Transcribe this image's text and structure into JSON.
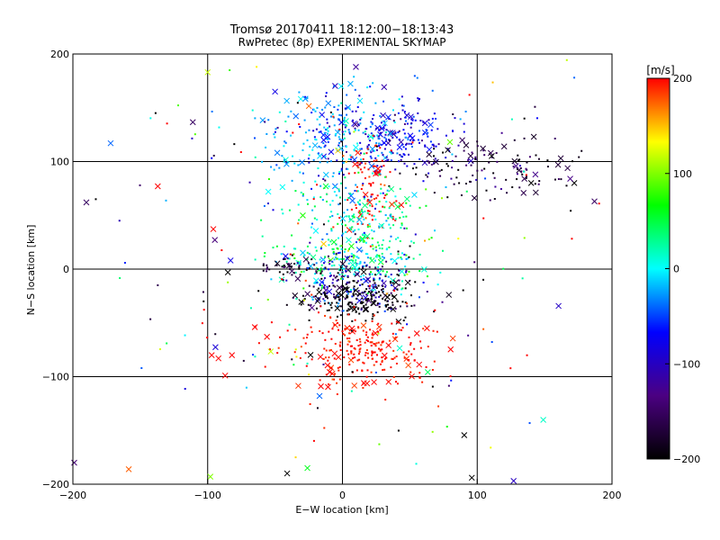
{
  "chart_data": {
    "type": "scatter",
    "title": "Tromsø 20170411 18:12:00−18:13:43",
    "subtitle": "RwPretec (8p) EXPERIMENTAL SKYMAP",
    "xlabel": "E−W location [km]",
    "ylabel": "N−S location [km]",
    "xlim": [
      -200,
      200
    ],
    "ylim": [
      -200,
      200
    ],
    "xticks": [
      -200,
      -100,
      0,
      100,
      200
    ],
    "yticks": [
      -200,
      -100,
      0,
      100,
      200
    ],
    "grid": true,
    "marker_legend": "small dots and x markers, colored by velocity",
    "colorbar": {
      "label": "[m/s]",
      "range": [
        -200,
        200
      ],
      "ticks": [
        -200,
        -100,
        0,
        100,
        200
      ],
      "colormap": [
        "#000000",
        "#4b0082",
        "#0000ff",
        "#00ffff",
        "#00ff00",
        "#ffff00",
        "#ff0000"
      ]
    },
    "clusters": [
      {
        "center": [
          30,
          120
        ],
        "spread": [
          28,
          20
        ],
        "count": 260,
        "velocity": -80,
        "vspread": 30
      },
      {
        "center": [
          -10,
          120
        ],
        "spread": [
          25,
          25
        ],
        "count": 180,
        "velocity": -20,
        "vspread": 20
      },
      {
        "center": [
          110,
          95
        ],
        "spread": [
          35,
          15
        ],
        "count": 120,
        "velocity": -170,
        "vspread": 25
      },
      {
        "center": [
          20,
          80
        ],
        "spread": [
          10,
          25
        ],
        "count": 90,
        "velocity": 200,
        "vspread": 10
      },
      {
        "center": [
          10,
          40
        ],
        "spread": [
          25,
          25
        ],
        "count": 230,
        "velocity": 15,
        "vspread": 30
      },
      {
        "center": [
          0,
          10
        ],
        "spread": [
          25,
          10
        ],
        "count": 140,
        "velocity": 20,
        "vspread": 40
      },
      {
        "center": [
          -40,
          3
        ],
        "spread": [
          12,
          5
        ],
        "count": 45,
        "velocity": -180,
        "vspread": 20
      },
      {
        "center": [
          10,
          -15
        ],
        "spread": [
          25,
          12
        ],
        "count": 260,
        "velocity": -130,
        "vspread": 80
      },
      {
        "center": [
          10,
          -30
        ],
        "spread": [
          20,
          8
        ],
        "count": 120,
        "velocity": -200,
        "vspread": 10
      },
      {
        "center": [
          15,
          -75
        ],
        "spread": [
          25,
          18
        ],
        "count": 260,
        "velocity": 195,
        "vspread": 8
      },
      {
        "center": [
          0,
          -40
        ],
        "spread": [
          90,
          80
        ],
        "count": 110,
        "velocity": 0,
        "vspread": 180
      },
      {
        "center": [
          0,
          90
        ],
        "spread": [
          90,
          60
        ],
        "count": 90,
        "velocity": 0,
        "vspread": 180
      }
    ],
    "explicit_points": [
      {
        "x": -190,
        "y": 62,
        "v": -150,
        "m": "x"
      },
      {
        "x": -183,
        "y": 65,
        "v": -200,
        "m": "d"
      },
      {
        "x": -172,
        "y": 117,
        "v": -40,
        "m": "x"
      },
      {
        "x": -137,
        "y": 77,
        "v": 200,
        "m": "x"
      },
      {
        "x": -97,
        "y": -80,
        "v": 200,
        "m": "x"
      },
      {
        "x": -92,
        "y": -83,
        "v": 200,
        "m": "x"
      },
      {
        "x": -82,
        "y": -80,
        "v": 200,
        "m": "x"
      },
      {
        "x": -87,
        "y": -99,
        "v": 200,
        "m": "x"
      },
      {
        "x": -83,
        "y": 8,
        "v": -80,
        "m": "x"
      },
      {
        "x": -85,
        "y": -3,
        "v": -200,
        "m": "x"
      },
      {
        "x": -41,
        "y": -190,
        "v": -200,
        "m": "x"
      },
      {
        "x": -26,
        "y": -185,
        "v": 60,
        "m": "x"
      },
      {
        "x": -98,
        "y": -193,
        "v": 100,
        "m": "x"
      },
      {
        "x": -17,
        "y": -118,
        "v": -40,
        "m": "x"
      },
      {
        "x": -16,
        "y": -109,
        "v": 200,
        "m": "x"
      },
      {
        "x": 10,
        "y": 188,
        "v": -120,
        "m": "x"
      },
      {
        "x": 96,
        "y": -194,
        "v": -200,
        "m": "x"
      },
      {
        "x": 127,
        "y": -197,
        "v": -100,
        "m": "x"
      },
      {
        "x": -199,
        "y": -180,
        "v": -140,
        "m": "x"
      },
      {
        "x": 187,
        "y": 63,
        "v": -150,
        "m": "x"
      },
      {
        "x": 172,
        "y": 80,
        "v": -200,
        "m": "x"
      },
      {
        "x": 169,
        "y": 84,
        "v": -130,
        "m": "x"
      },
      {
        "x": 140,
        "y": 80,
        "v": -200,
        "m": "x"
      },
      {
        "x": 135,
        "y": 84,
        "v": -160,
        "m": "x"
      },
      {
        "x": 162,
        "y": 103,
        "v": -170,
        "m": "x"
      },
      {
        "x": 160,
        "y": 97,
        "v": -170,
        "m": "x"
      },
      {
        "x": 142,
        "y": 123,
        "v": -180,
        "m": "x"
      },
      {
        "x": 120,
        "y": 114,
        "v": -170,
        "m": "x"
      },
      {
        "x": -100,
        "y": 183,
        "v": 120,
        "m": "x"
      },
      {
        "x": -50,
        "y": 165,
        "v": -80,
        "m": "x"
      },
      {
        "x": -55,
        "y": 72,
        "v": 0,
        "m": "x"
      },
      {
        "x": -65,
        "y": -54,
        "v": 200,
        "m": "x"
      },
      {
        "x": -56,
        "y": -63,
        "v": 200,
        "m": "x"
      },
      {
        "x": 110,
        "y": -166,
        "v": 130,
        "m": "d"
      },
      {
        "x": 172,
        "y": 178,
        "v": -40,
        "m": "d"
      },
      {
        "x": 135,
        "y": 140,
        "v": -200,
        "m": "d"
      },
      {
        "x": -137,
        "y": -15,
        "v": -160,
        "m": "d"
      },
      {
        "x": -103,
        "y": -30,
        "v": -200,
        "m": "d"
      }
    ]
  }
}
